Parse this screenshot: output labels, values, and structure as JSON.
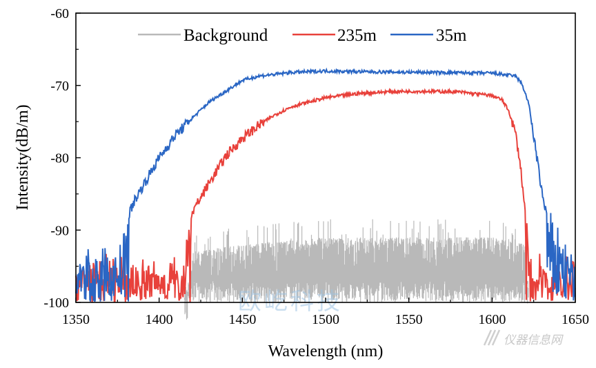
{
  "chart_data": {
    "type": "line",
    "title": "",
    "xlabel": "Wavelength (nm)",
    "ylabel": "Intensity(dB/m)",
    "xlim": [
      1350,
      1650
    ],
    "ylim": [
      -100,
      -60
    ],
    "xticks": [
      1350,
      1400,
      1450,
      1500,
      1550,
      1600,
      1650
    ],
    "yticks": [
      -60,
      -70,
      -80,
      -90,
      -100
    ],
    "xtick_labels": [
      "1350",
      "1400",
      "1450",
      "1500",
      "1550",
      "1600",
      "1650"
    ],
    "ytick_labels": [
      "-60",
      "-70",
      "-80",
      "-90",
      "-100"
    ],
    "grid": false,
    "legend_position": "top",
    "series": [
      {
        "name": "Background",
        "color": "#b9b9b9",
        "x": [
          1350,
          1415,
          1420,
          1450,
          1500,
          1550,
          1600,
          1620,
          1622,
          1650
        ],
        "values": [
          -100,
          -100,
          -93,
          -92,
          -91,
          -91,
          -91,
          -92,
          -100,
          -100
        ],
        "noise_floor_dB": -100
      },
      {
        "name": "235m",
        "color": "#e8413b",
        "x": [
          1350,
          1390,
          1414,
          1416,
          1420,
          1430,
          1440,
          1450,
          1460,
          1470,
          1480,
          1500,
          1520,
          1540,
          1560,
          1580,
          1600,
          1606,
          1610,
          1614,
          1617,
          1619,
          1620,
          1621,
          1622,
          1624,
          1650
        ],
        "values": [
          -96,
          -96,
          -96,
          -89.5,
          -87.5,
          -83.5,
          -79.8,
          -77.3,
          -75.5,
          -74.0,
          -72.9,
          -71.7,
          -71.1,
          -70.85,
          -70.8,
          -70.9,
          -71.4,
          -72.0,
          -73.5,
          -76.5,
          -81.0,
          -85.5,
          -88.0,
          -91.0,
          -94.0,
          -96.0,
          -96.0
        ]
      },
      {
        "name": "35m",
        "color": "#2a66c4",
        "x": [
          1350,
          1370,
          1377,
          1380,
          1385,
          1390,
          1400,
          1410,
          1420,
          1430,
          1440,
          1450,
          1460,
          1480,
          1500,
          1520,
          1560,
          1600,
          1614,
          1618,
          1622,
          1626,
          1630,
          1634,
          1638,
          1642,
          1646,
          1650
        ],
        "values": [
          -95,
          -95,
          -94,
          -89.0,
          -86.0,
          -84.0,
          -80.0,
          -76.8,
          -74.5,
          -72.3,
          -70.8,
          -69.3,
          -68.7,
          -68.2,
          -68.0,
          -68.1,
          -68.2,
          -68.3,
          -68.7,
          -69.8,
          -72.5,
          -78.5,
          -85.0,
          -89.0,
          -90.5,
          -92.5,
          -94.0,
          -96.0
        ]
      }
    ]
  },
  "watermarks": {
    "center_text": "欧屹科技",
    "corner_text": "仪器信息网"
  },
  "colors": {
    "axis": "#000000",
    "background_series": "#b9b9b9",
    "series_235m": "#e8413b",
    "series_35m": "#2a66c4"
  }
}
